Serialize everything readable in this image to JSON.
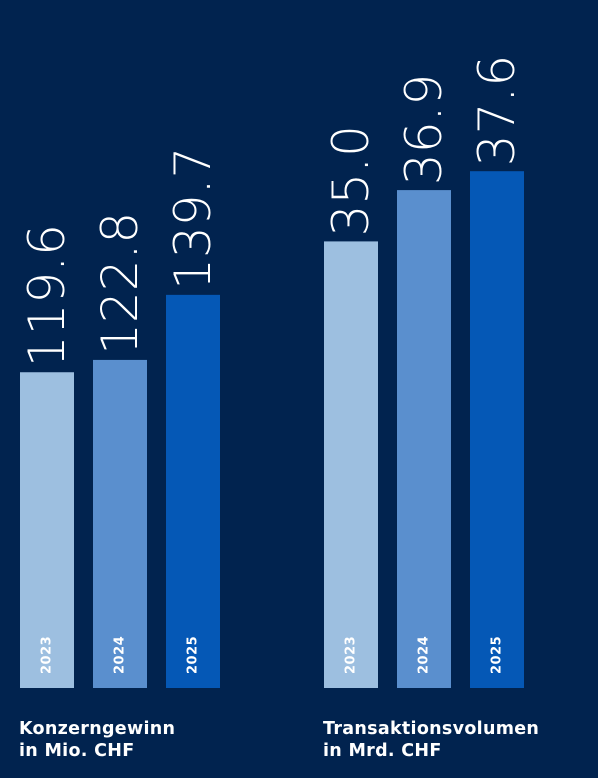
{
  "colors": {
    "background": "#01234f",
    "bar_2023": "#9dbfe0",
    "bar_2024": "#5a8fce",
    "bar_2025": "#0558b6",
    "year_2023": "#ffffff",
    "year_2024": "#ffffff",
    "year_2025": "#ffffff"
  },
  "chart_data": [
    {
      "type": "bar",
      "categories": [
        "2023",
        "2024",
        "2025"
      ],
      "values": [
        119.6,
        122.8,
        139.7
      ],
      "value_labels": [
        "119.6",
        "122.8",
        "139.7"
      ],
      "title": "Konzerngewinn",
      "unit": "in Mio. CHF"
    },
    {
      "type": "bar",
      "categories": [
        "2023",
        "2024",
        "2025"
      ],
      "values": [
        35.0,
        36.9,
        37.6
      ],
      "value_labels": [
        "35.0",
        "36.9",
        "37.6"
      ],
      "title": "Transaktionsvolumen",
      "unit": "in Mrd. CHF"
    }
  ]
}
